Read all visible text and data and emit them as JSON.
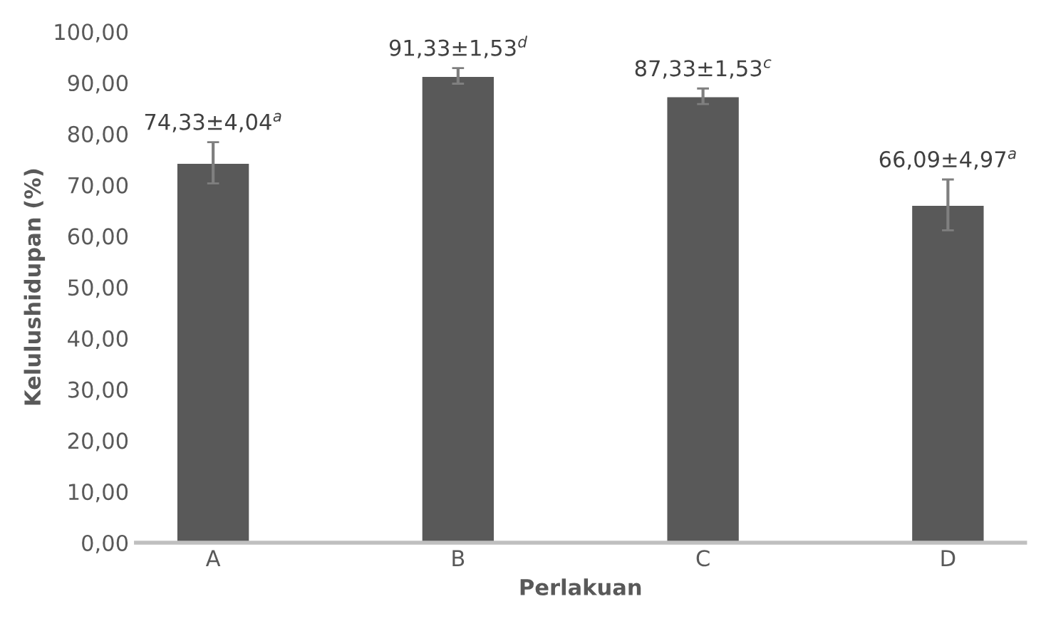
{
  "chart_data": {
    "type": "bar",
    "xlabel": "Perlakuan",
    "ylabel": "Kelulushidupan (%)",
    "categories": [
      "A",
      "B",
      "C",
      "D"
    ],
    "values": [
      74.33,
      91.33,
      87.33,
      66.09
    ],
    "errors": [
      4.04,
      1.53,
      1.53,
      4.97
    ],
    "value_labels": [
      "74,33±4,04$^{a}$",
      "91,33±1,53$^{d}$",
      "87,33±1,53$^{c}$",
      "66,09±4,97$^{a}$"
    ],
    "color": "#595959",
    "ylim": [
      0,
      100
    ],
    "yticks": [
      {
        "value": 0,
        "label": "0,00"
      },
      {
        "value": 10,
        "label": "10,00"
      },
      {
        "value": 20,
        "label": "20,00"
      },
      {
        "value": 30,
        "label": "30,00"
      },
      {
        "value": 40,
        "label": "40,00"
      },
      {
        "value": 50,
        "label": "50,00"
      },
      {
        "value": 60,
        "label": "60,00"
      },
      {
        "value": 70,
        "label": "70,00"
      },
      {
        "value": 80,
        "label": "80,00"
      },
      {
        "value": 90,
        "label": "90,00"
      },
      {
        "value": 100,
        "label": "100,00"
      }
    ],
    "grid": false,
    "legend": false
  }
}
